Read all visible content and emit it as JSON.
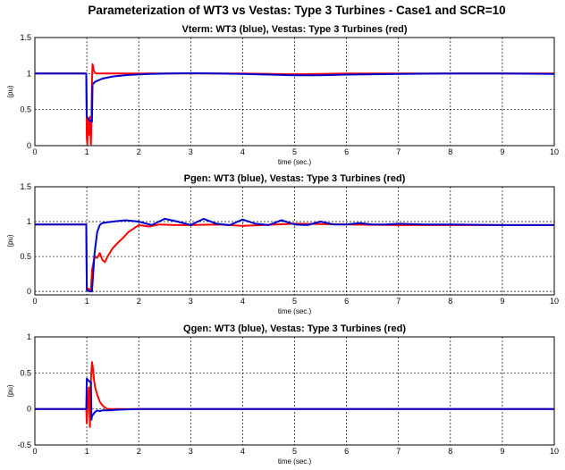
{
  "figure": {
    "title": "Parameterization of WT3 vs Vestas: Type 3 Turbines - Case1 and SCR=10"
  },
  "chart_data": [
    {
      "type": "line",
      "title": "Vterm: WT3 (blue), Vestas: Type 3 Turbines (red)",
      "xlabel": "time (sec.)",
      "ylabel": "(pu)",
      "xlim": [
        0,
        10
      ],
      "ylim": [
        0,
        1.5
      ],
      "xticks": [
        "0",
        "1",
        "2",
        "3",
        "4",
        "5",
        "6",
        "7",
        "8",
        "9",
        "10"
      ],
      "yticks": [
        "0",
        "0.5",
        "1",
        "1.5"
      ],
      "grid": true,
      "series": [
        {
          "color": "#ff0000",
          "x": [
            0,
            0.99,
            1.0,
            1.01,
            1.02,
            1.04,
            1.06,
            1.08,
            1.09,
            1.1,
            1.11,
            1.12,
            1.13,
            1.15,
            1.18,
            1.22,
            1.3,
            1.5,
            2,
            3,
            4,
            5,
            6,
            7,
            8,
            9,
            10
          ],
          "y": [
            1.0,
            1.0,
            0.1,
            0.02,
            0.38,
            0.15,
            0.4,
            0.02,
            0.4,
            0.9,
            1.13,
            1.1,
            1.05,
            1.02,
            1.0,
            1.0,
            1.0,
            1.0,
            1.0,
            1.0,
            1.0,
            0.99,
            1.0,
            1.0,
            1.0,
            1.0,
            1.0
          ]
        },
        {
          "color": "#0000cc",
          "x": [
            0,
            0.99,
            1.0,
            1.05,
            1.1,
            1.11,
            1.15,
            1.2,
            1.3,
            1.5,
            1.8,
            2.2,
            2.6,
            3.0,
            3.5,
            4.0,
            4.5,
            5.0,
            5.5,
            6.0,
            6.5,
            7.0,
            8,
            9,
            10
          ],
          "y": [
            1.0,
            1.0,
            0.4,
            0.35,
            0.33,
            0.85,
            0.88,
            0.9,
            0.93,
            0.96,
            0.98,
            0.995,
            1.0,
            1.005,
            1.0,
            0.995,
            0.985,
            0.975,
            0.975,
            0.985,
            0.99,
            0.995,
            1.0,
            1.0,
            0.995
          ]
        }
      ]
    },
    {
      "type": "line",
      "title": "Pgen: WT3 (blue), Vestas: Type 3 Turbines (red)",
      "xlabel": "time (sec.)",
      "ylabel": "(pu)",
      "xlim": [
        0,
        10
      ],
      "ylim": [
        -0.05,
        1.5
      ],
      "xticks": [
        "0",
        "1",
        "2",
        "3",
        "4",
        "5",
        "6",
        "7",
        "8",
        "9",
        "10"
      ],
      "yticks": [
        "0",
        "0.5",
        "1",
        "1.5"
      ],
      "grid": true,
      "series": [
        {
          "color": "#ff0000",
          "x": [
            0,
            0.99,
            1.0,
            1.05,
            1.08,
            1.1,
            1.15,
            1.2,
            1.25,
            1.3,
            1.35,
            1.4,
            1.5,
            1.6,
            1.7,
            1.8,
            2.0,
            2.2,
            2.4,
            2.7,
            3.0,
            3.5,
            4.0,
            5.0,
            6.0,
            7.0,
            8.0,
            9.0,
            10.0
          ],
          "y": [
            0.96,
            0.96,
            0.05,
            0.03,
            0.02,
            0.3,
            0.5,
            0.48,
            0.55,
            0.45,
            0.42,
            0.5,
            0.62,
            0.7,
            0.77,
            0.85,
            0.95,
            0.93,
            0.96,
            0.95,
            0.95,
            0.96,
            0.94,
            0.97,
            0.96,
            0.95,
            0.95,
            0.95,
            0.95
          ]
        },
        {
          "color": "#0000cc",
          "x": [
            0,
            0.99,
            1.0,
            1.05,
            1.1,
            1.15,
            1.2,
            1.25,
            1.3,
            1.4,
            1.5,
            1.75,
            2.0,
            2.25,
            2.5,
            2.75,
            3.0,
            3.25,
            3.5,
            3.75,
            4.0,
            4.25,
            4.5,
            4.75,
            5.0,
            5.25,
            5.5,
            5.75,
            6.0,
            6.25,
            6.5,
            6.75,
            7.0,
            7.5,
            8.0,
            9.0,
            10.0
          ],
          "y": [
            0.96,
            0.96,
            0.02,
            0.0,
            0.0,
            0.55,
            0.85,
            0.95,
            0.98,
            0.99,
            1.0,
            1.02,
            1.0,
            0.95,
            1.04,
            1.0,
            0.95,
            1.04,
            0.97,
            0.95,
            1.03,
            0.97,
            0.95,
            1.02,
            0.96,
            0.95,
            1.0,
            0.96,
            0.96,
            0.98,
            0.96,
            0.96,
            0.97,
            0.96,
            0.96,
            0.95,
            0.95
          ]
        }
      ]
    },
    {
      "type": "line",
      "title": "Qgen: WT3 (blue), Vestas: Type 3 Turbines (red)",
      "xlabel": "time (sec.)",
      "ylabel": "(pu)",
      "xlim": [
        0,
        10
      ],
      "ylim": [
        -0.5,
        1
      ],
      "xticks": [
        "0",
        "1",
        "2",
        "3",
        "4",
        "5",
        "6",
        "7",
        "8",
        "9",
        "10"
      ],
      "yticks": [
        "-0.5",
        "0",
        "0.5",
        "1"
      ],
      "grid": true,
      "series": [
        {
          "color": "#ff0000",
          "x": [
            0,
            0.99,
            1.0,
            1.02,
            1.04,
            1.06,
            1.08,
            1.1,
            1.12,
            1.14,
            1.16,
            1.2,
            1.25,
            1.3,
            1.35,
            1.4,
            1.5,
            2.0,
            10.0
          ],
          "y": [
            0.0,
            0.0,
            -0.2,
            0.1,
            0.3,
            -0.25,
            0.4,
            0.65,
            0.55,
            0.4,
            0.3,
            0.2,
            0.1,
            0.05,
            0.02,
            0.0,
            0.0,
            0.0,
            0.0
          ]
        },
        {
          "color": "#0000cc",
          "x": [
            0,
            0.99,
            1.0,
            1.05,
            1.08,
            1.09,
            1.1,
            1.15,
            1.2,
            1.25,
            1.3,
            1.4,
            1.6,
            2.0,
            10.0
          ],
          "y": [
            0.0,
            0.0,
            0.42,
            0.38,
            0.37,
            -0.15,
            -0.1,
            -0.05,
            -0.02,
            -0.03,
            -0.02,
            -0.02,
            -0.01,
            0.0,
            0.0
          ]
        }
      ]
    }
  ]
}
